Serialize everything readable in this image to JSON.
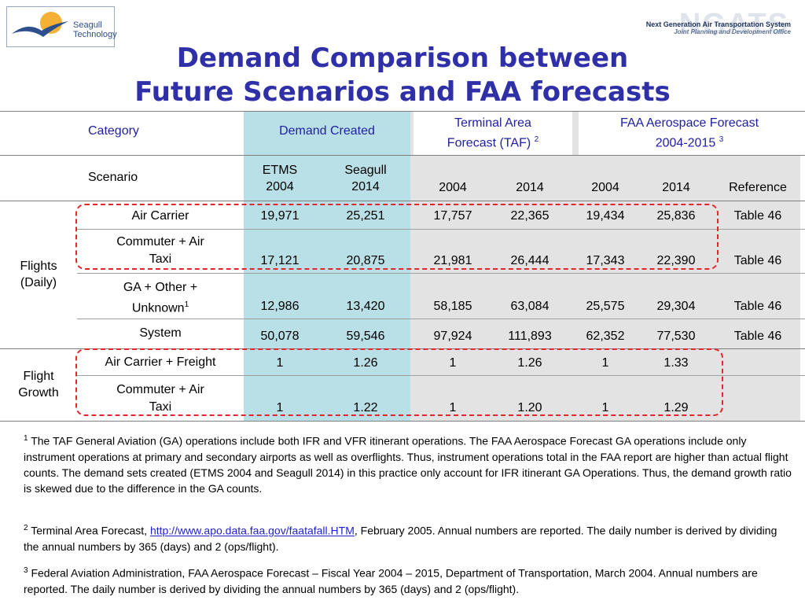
{
  "logo": {
    "line1": "Seagull",
    "line2": "Technology"
  },
  "ngats": {
    "big": "NGATS",
    "line1": "Next Generation Air Transportation System",
    "line2": "Joint Planning and Development Office"
  },
  "title": {
    "line1": "Demand Comparison between",
    "line2": "Future Scenarios and FAA forecasts"
  },
  "colors": {
    "title": "#2f2fa8",
    "header_text": "#1f1fa0",
    "demand_bg": "#b9e0e6",
    "forecast_bg": "#e3e3e3",
    "highlight": "#e3262d"
  },
  "table": {
    "header": {
      "category": "Category",
      "demand": "Demand Created",
      "taf_line1": "Terminal Area",
      "taf_line2": "Forecast (TAF)",
      "taf_sup": "2",
      "faa_line1": "FAA Aerospace Forecast",
      "faa_line2": "2004-2015",
      "faa_sup": "3"
    },
    "scenario": {
      "label": "Scenario",
      "etms_l1": "ETMS",
      "etms_l2": "2004",
      "seagull_l1": "Seagull",
      "seagull_l2": "2014",
      "taf_2004": "2004",
      "taf_2014": "2014",
      "faa_2004": "2004",
      "faa_2014": "2014",
      "reference": "Reference"
    },
    "groups": {
      "flights_l1": "Flights",
      "flights_l2": "(Daily)",
      "growth_l1": "Flight",
      "growth_l2": "Growth"
    },
    "rows": [
      {
        "label_l1": "Air Carrier",
        "label_l2": "",
        "sup": "",
        "etms": "19,971",
        "seagull": "25,251",
        "taf04": "17,757",
        "taf14": "22,365",
        "faa04": "19,434",
        "faa14": "25,836",
        "ref": "Table 46"
      },
      {
        "label_l1": "Commuter + Air",
        "label_l2": "Taxi",
        "sup": "",
        "etms": "17,121",
        "seagull": "20,875",
        "taf04": "21,981",
        "taf14": "26,444",
        "faa04": "17,343",
        "faa14": "22,390",
        "ref": "Table 46"
      },
      {
        "label_l1": "GA + Other +",
        "label_l2": "Unknown",
        "sup": "1",
        "etms": "12,986",
        "seagull": "13,420",
        "taf04": "58,185",
        "taf14": "63,084",
        "faa04": "25,575",
        "faa14": "29,304",
        "ref": "Table 46"
      },
      {
        "label_l1": "System",
        "label_l2": "",
        "sup": "",
        "etms": "50,078",
        "seagull": "59,546",
        "taf04": "97,924",
        "taf14": "111,893",
        "faa04": "62,352",
        "faa14": "77,530",
        "ref": "Table 46"
      },
      {
        "label_l1": "Air Carrier + Freight",
        "label_l2": "",
        "sup": "",
        "etms": "1",
        "seagull": "1.26",
        "taf04": "1",
        "taf14": "1.26",
        "faa04": "1",
        "faa14": "1.33",
        "ref": ""
      },
      {
        "label_l1": "Commuter + Air",
        "label_l2": "Taxi",
        "sup": "",
        "etms": "1",
        "seagull": "1.22",
        "taf04": "1",
        "taf14": "1.20",
        "faa04": "1",
        "faa14": "1.29",
        "ref": ""
      }
    ]
  },
  "footnotes": {
    "n1_mark": "1",
    "n1_text": "The TAF General Aviation (GA) operations include both IFR and VFR itinerant operations. The FAA Aerospace Forecast GA operations include only instrument operations at primary and secondary airports as well as overflights. Thus, instrument operations total in the FAA report are higher than actual flight counts. The demand sets created (ETMS 2004 and Seagull 2014) in this practice only account for IFR itinerant GA Operations. Thus, the demand growth ratio is skewed due to the difference in the GA counts.",
    "n2_mark": "2",
    "n2_pre": "Terminal Area Forecast, ",
    "n2_link": "http://www.apo.data.faa.gov/faatafall.HTM",
    "n2_post": ", February 2005. Annual numbers are reported. The daily number is derived by dividing the annual numbers by 365 (days) and 2 (ops/flight).",
    "n3_mark": "3",
    "n3_text": "Federal Aviation Administration, FAA Aerospace Forecast – Fiscal Year 2004 – 2015, Department of Transportation, March 2004. Annual numbers are reported. The daily number is derived by dividing the annual numbers by 365 (days) and 2 (ops/flight)."
  }
}
